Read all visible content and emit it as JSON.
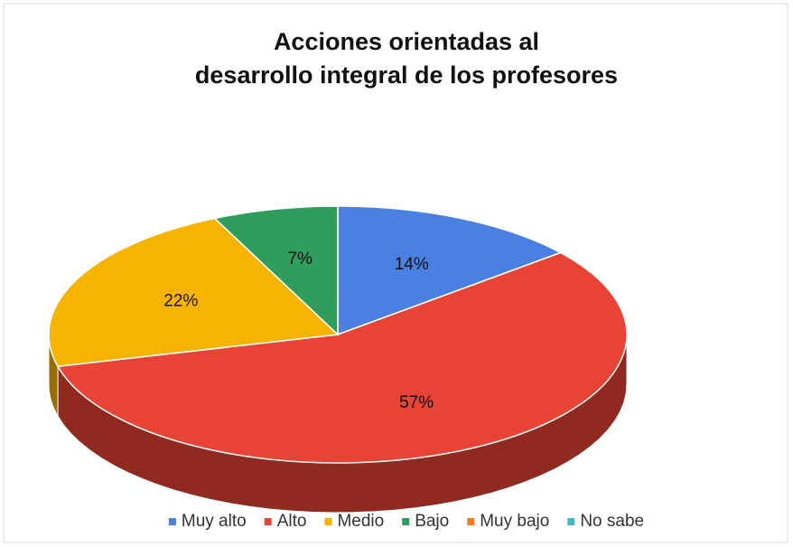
{
  "chart_data": {
    "type": "pie3d",
    "title": [
      "Acciones orientadas al",
      "desarrollo integral de los profesores"
    ],
    "categories": [
      "Muy alto",
      "Alto",
      "Medio",
      "Bajo",
      "Muy bajo",
      "No sabe"
    ],
    "values": [
      14,
      57,
      22,
      7,
      0,
      0
    ],
    "value_labels": [
      "14%",
      "57%",
      "22%",
      "7%",
      null,
      null
    ],
    "colors": [
      "#4a80e2",
      "#e84335",
      "#f6b400",
      "#2f9d5b",
      "#f57c21",
      "#3fb9c5"
    ],
    "legend": "bottom"
  }
}
